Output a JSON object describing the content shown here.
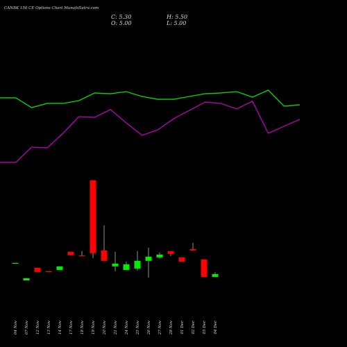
{
  "chart_data": [
    {
      "type": "candlestick",
      "title": "CANBK 150 CE Options Chart MunafaSutra.com",
      "ohlc_labels": [
        "C: 5.30",
        "H: 5.50",
        "O: 5.00",
        "L: 5.00"
      ],
      "categories": [
        "04 Nov",
        "07 Nov",
        "12 Nov",
        "13 Nov",
        "14 Nov",
        "17 Nov",
        "18 Nov",
        "19 Nov",
        "20 Nov",
        "21 Nov",
        "24 Nov",
        "25 Nov",
        "26 Nov",
        "27 Nov",
        "28 Nov",
        "01 Dec",
        "02 Dec",
        "03 Dec",
        "04 Dec"
      ],
      "open": [
        6.5,
        4.62,
        5.98,
        5.6,
        5.75,
        7.7,
        7.33,
        15.43,
        7.85,
        6.13,
        5.75,
        5.9,
        6.73,
        7.1,
        7.78,
        7.1,
        8.0,
        6.88,
        5.0
      ],
      "high": [
        6.5,
        4.85,
        5.98,
        5.6,
        6.13,
        7.7,
        7.78,
        15.43,
        10.55,
        7.7,
        6.65,
        7.78,
        8.15,
        7.63,
        7.78,
        7.1,
        8.68,
        6.88,
        5.5
      ],
      "low": [
        6.5,
        4.62,
        5.53,
        5.53,
        5.75,
        7.33,
        7.25,
        7.03,
        6.73,
        5.6,
        5.75,
        5.68,
        4.92,
        6.95,
        7.25,
        6.65,
        7.85,
        5.0,
        5.0
      ],
      "close": [
        6.5,
        4.85,
        5.53,
        5.53,
        6.13,
        7.33,
        7.25,
        7.55,
        6.73,
        6.43,
        6.35,
        6.73,
        7.18,
        7.4,
        7.48,
        6.65,
        7.85,
        5.0,
        5.3
      ],
      "up_color": "#00ee00",
      "down_color": "#ff0000",
      "ylim": [
        2,
        16
      ]
    },
    {
      "type": "line",
      "ylim": [
        0,
        100
      ],
      "series": [
        {
          "color": "#00dd00",
          "values": [
            74.4,
            74.4,
            65.6,
            69.4,
            69.4,
            71.9,
            78.8,
            78.1,
            80,
            75.6,
            73.1,
            73.1,
            75.6,
            78.1,
            78.8,
            80,
            75,
            81.3,
            66.9,
            68.1
          ]
        },
        {
          "color": "#bb00bb",
          "values": [
            16.3,
            16.3,
            30,
            29.4,
            42.5,
            57.5,
            56.9,
            63.8,
            51.9,
            40.6,
            45.6,
            55.6,
            63.1,
            70.6,
            69.4,
            64.4,
            71.3,
            42.5,
            48.8,
            55
          ]
        }
      ]
    }
  ]
}
